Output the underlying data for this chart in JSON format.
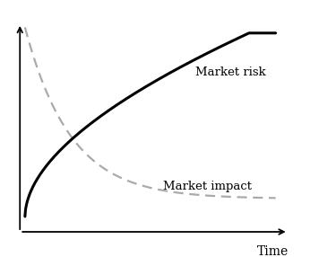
{
  "background_color": "#ffffff",
  "market_risk_label": "Market risk",
  "market_impact_label": "Market impact",
  "time_label": "Time",
  "market_risk_color": "#000000",
  "market_impact_color": "#aaaaaa",
  "market_risk_linewidth": 2.2,
  "market_impact_linewidth": 1.6,
  "label_fontsize": 9.5,
  "axis_label_fontsize": 10,
  "figsize": [
    3.46,
    2.86
  ],
  "dpi": 100,
  "xlim": [
    -0.5,
    11.0
  ],
  "ylim": [
    -0.12,
    1.08
  ]
}
